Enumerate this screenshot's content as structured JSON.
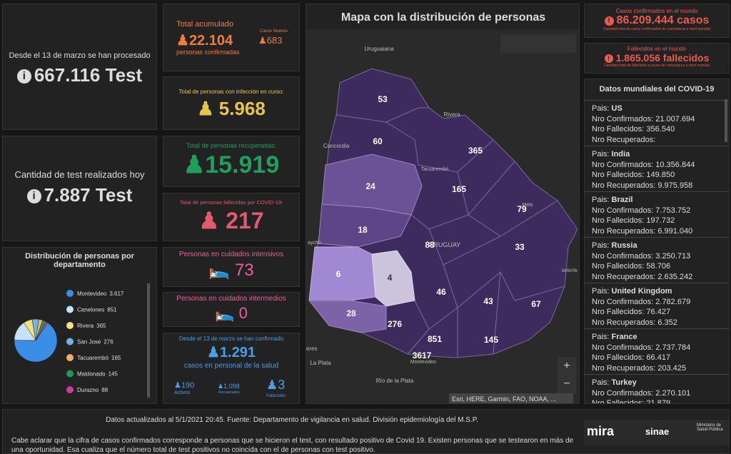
{
  "left": {
    "processed": {
      "label": "Desde el 13 de marzo se han procesado",
      "value": "667.116 Test"
    },
    "today": {
      "label": "Cantidad de test realizados hoy",
      "value": "7.887 Test"
    }
  },
  "chart_data": {
    "type": "pie",
    "title": "Distribución de personas por departamento",
    "categories": [
      "Montevideo",
      "Canelones",
      "Rivera",
      "San José",
      "Tacuarembó",
      "Maldonado",
      "Durazno"
    ],
    "values": [
      3617,
      851,
      365,
      276,
      165,
      145,
      88
    ],
    "value_labels": [
      "3.617",
      "851",
      "365",
      "276",
      "165",
      "145",
      "88"
    ],
    "colors": [
      "#3b8ee6",
      "#c6e2f6",
      "#f3e27c",
      "#6cb3f2",
      "#f2ae66",
      "#1b9a5b",
      "#c93d9c"
    ]
  },
  "stats": {
    "total": {
      "label": "Total acumulado",
      "value": "22.104",
      "sub": "personas confirmadas",
      "new_label": "Casos Nuevos",
      "new_value": "683"
    },
    "active": {
      "label": "Total de personas con infección en curso:",
      "value": "5.968"
    },
    "recovered": {
      "label": "Total de personas recuperadas:",
      "value": "15.919"
    },
    "deceased": {
      "label": "Total de personas fallecidas por COVID-19:",
      "value": "217"
    },
    "intensive": {
      "label": "Personas en cuidados intensivos",
      "value": "73"
    },
    "intermediate": {
      "label": "Personas en cuidados intermedios",
      "value": "0"
    },
    "health": {
      "label": "Desde el 13 de marzo se han confirmado",
      "value": "1.291",
      "sub": "casos en personal de la salud",
      "active_value": "190",
      "active_label": "Activos",
      "recovered_value": "1.098",
      "recovered_label": "Recuperados",
      "deceased_value": "3",
      "deceased_label": "Fallecidos"
    }
  },
  "map": {
    "title": "Mapa con la distribución de personas",
    "departments": [
      53,
      60,
      365,
      24,
      165,
      79,
      18,
      88,
      33,
      6,
      4,
      46,
      43,
      67,
      28,
      276,
      851,
      145,
      3617
    ],
    "places": [
      "Uruguaiana",
      "Rivera",
      "Concordia",
      "Tacuarembó",
      "Melo",
      "URUGUAY",
      "aychú",
      "Santa Vitória do Palmar",
      "eres",
      "La Plata",
      "Río de la Plata",
      "Montevideo"
    ],
    "attribution": "Esri, HERE, Garmin, FAO, NOAA, ..."
  },
  "world": {
    "cases": {
      "label": "Casos confirmados en el mundo",
      "value": "86.209.444 casos",
      "note": "Cantidad total de casos confirmados de coronavirus a nivel mundial"
    },
    "deaths": {
      "label": "Fallecidos en el mundo",
      "value": "1.865.056 fallecidos",
      "note": "Cantidad total de fallecidos a causa de coronavirus a nivel mundial"
    },
    "list_title": "Datos mundiales del COVID-19",
    "field_labels": {
      "pais": "Pais:",
      "confirmados": "Nro Confirmados:",
      "fallecidos": "Nro Fallecidos:",
      "recuperados": "Nro Recuperados:"
    },
    "countries": [
      {
        "pais": "US",
        "confirmados": "21.007.694",
        "fallecidos": "356.540"
      },
      {
        "pais": "India",
        "confirmados": "10.356.844",
        "fallecidos": "149.850",
        "recuperados": "9.975.958"
      },
      {
        "pais": "Brazil",
        "confirmados": "7.753.752",
        "fallecidos": "197.732",
        "recuperados": "6.991.040"
      },
      {
        "pais": "Russia",
        "confirmados": "3.250.713",
        "fallecidos": "58.706",
        "recuperados": "2.635.242"
      },
      {
        "pais": "United Kingdom",
        "confirmados": "2.782.679",
        "fallecidos": "76.427",
        "recuperados": "6.352"
      },
      {
        "pais": "France",
        "confirmados": "2.737.784",
        "fallecidos": "66.417",
        "recuperados": "203.425"
      },
      {
        "pais": "Turkey",
        "confirmados": "2.270.101",
        "fallecidos": "21.879"
      }
    ]
  },
  "footer": {
    "updated": "Datos actualizados al 5/1/2021 20:45. Fuente: Departamento de vigilancia en salud. División epidemiología del M.S.P.",
    "note": "Cabe aclarar que la cifra de casos confirmados corresponde a personas que se hicieron el test, con resultado positivo de Covid 19. Existen personas que se testearon en más de una oportunidad. Esa cualiza que el número total de test positivos no coincida con el de personas con test positivo.",
    "logos": [
      "mira",
      "sinae",
      "Ministerio de Salud Pública"
    ]
  }
}
